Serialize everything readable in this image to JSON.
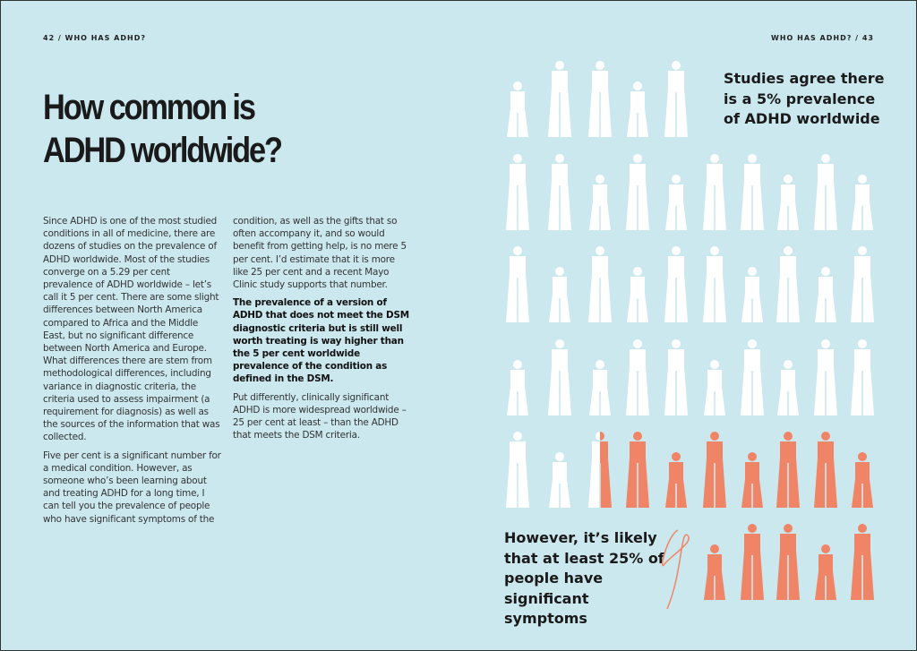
{
  "header": {
    "left_folio": "42 / WHO HAS ADHD?",
    "right_folio": "WHO HAS ADHD? / 43"
  },
  "title": "How common is ADHD worldwide?",
  "column1": [
    "Since ADHD is one of the most studied conditions in all of medicine, there are dozens of studies on the prevalence of ADHD worldwide. Most of the studies converge on a 5.29 per cent prevalence of ADHD worldwide – let’s call it 5 per cent. There are some slight differences between North America compared to Africa and the Middle East, but no significant difference between North America and Europe. What differences there are stem from methodological differences, including variance in diagnostic criteria, the criteria used to assess impairment (a requirement for diagnosis) as well as the sources of the information that was collected.",
    "Five per cent is a significant number for a medical condition. However, as someone who’s been learning about and treating ADHD for a long time, I can tell you the prevalence of people who have significant symptoms of the"
  ],
  "column2": [
    "condition, as well as the gifts that so often accompany it, and so would benefit from getting help, is no mere 5 per cent. I’d estimate that it is more like 25 per cent and a recent Mayo Clinic study supports that number.",
    "The prevalence of a version of ADHD that does not meet the DSM diagnostic criteria but is still well worth treating is way higher than the 5 per cent worldwide prevalence of the condition as defined in the DSM.",
    "Put differently, clinically significant ADHD is more widespread worldwide – 25 per cent at least – than the ADHD that meets the DSM criteria."
  ],
  "callout_top": "Studies agree there is a 5% prevalence of ADHD worldwide",
  "callout_bottom": "However, it’s likely that at least 25% of people have significant symptoms",
  "colors": {
    "background": "#cbe8ee",
    "white_figure": "#ffffff",
    "highlight_figure": "#f08466"
  },
  "infographic": {
    "total_figures": 50,
    "highlighted_share_percent": 25
  }
}
